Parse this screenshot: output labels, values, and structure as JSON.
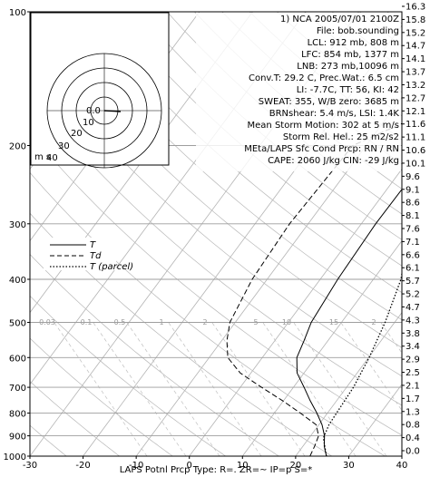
{
  "chart_data": {
    "type": "skew-t",
    "x_label": "",
    "x_ticks": [
      -30,
      -20,
      -10,
      0,
      10,
      20,
      30,
      40
    ],
    "y_ticks_pressure": [
      100,
      200,
      300,
      400,
      500,
      600,
      700,
      800,
      900,
      1000
    ],
    "y_ticks_height_km": [
      "16.3",
      "15.8",
      "15.2",
      "14.7",
      "14.1",
      "13.7",
      "13.2",
      "12.7",
      "12.1",
      "11.6",
      "11.1",
      "10.6",
      "10.1",
      "9.6",
      "9.1",
      "8.6",
      "8.1",
      "7.6",
      "7.1",
      "6.6",
      "6.1",
      "5.7",
      "5.2",
      "4.7",
      "4.3",
      "3.8",
      "3.4",
      "2.9",
      "2.5",
      "2.1",
      "1.7",
      "1.3",
      "0.8",
      "0.4",
      "0.0"
    ],
    "mixing_ratio_labels": [
      "0.03",
      "0.1",
      "0.5",
      "1",
      "2",
      "5",
      "10",
      "15",
      "2"
    ],
    "xlim": [
      -30,
      40
    ],
    "ylim_pressure": [
      1000,
      100
    ],
    "series": [
      {
        "name": "T",
        "style": "solid",
        "points": [
          [
            25.8,
            1000
          ],
          [
            24,
            950
          ],
          [
            22.6,
            900
          ],
          [
            20.6,
            850
          ],
          [
            18,
            800
          ],
          [
            15,
            750
          ],
          [
            12,
            700
          ],
          [
            8.7,
            650
          ],
          [
            6.5,
            600
          ],
          [
            5.5,
            550
          ],
          [
            4.3,
            500
          ],
          [
            3.3,
            400
          ],
          [
            2.7,
            300
          ],
          [
            3,
            200
          ],
          [
            20,
            150
          ],
          [
            29.8,
            100
          ]
        ]
      },
      {
        "name": "Td",
        "style": "dashed",
        "points": [
          [
            22.7,
            1000
          ],
          [
            22.2,
            950
          ],
          [
            21.5,
            900
          ],
          [
            19.5,
            850
          ],
          [
            14.9,
            800
          ],
          [
            9.8,
            750
          ],
          [
            4,
            700
          ],
          [
            -2,
            650
          ],
          [
            -6.5,
            600
          ],
          [
            -9,
            550
          ],
          [
            -11,
            500
          ],
          [
            -12.8,
            400
          ],
          [
            -13.5,
            300
          ],
          [
            -12.5,
            200
          ],
          [
            3,
            150
          ],
          [
            23.8,
            100
          ]
        ]
      },
      {
        "name": "T (parcel)",
        "style": "dotted",
        "points": [
          [
            25.8,
            1000
          ],
          [
            22.7,
            910
          ],
          [
            21.9,
            850
          ],
          [
            21.7,
            800
          ],
          [
            21.3,
            700
          ],
          [
            20.1,
            600
          ],
          [
            18.2,
            500
          ],
          [
            15.2,
            400
          ],
          [
            9.2,
            300
          ],
          [
            -1.6,
            200
          ],
          [
            -11,
            100
          ]
        ]
      }
    ],
    "legend": [
      "T",
      "Td",
      "T (parcel)"
    ],
    "hodograph": {
      "rings": [
        "10",
        "20",
        "30",
        "40"
      ],
      "center_label": "0.0",
      "units": "m s"
    },
    "info": {
      "title": "1)  NCA  2005/07/01  2100Z",
      "file": "File: bob.sounding",
      "lcl": "LCL:  912 mb,   808  m",
      "lfc": "LFC:  854 mb,  1377  m",
      "lnb": "LNB:  273 mb,10096  m",
      "conv": "Conv.T: 29.2 C,  Prec.Wat.:  6.5  cm",
      "li": "LI:   -7.7C,  TT:  56,  KI:  42",
      "sweat": "SWEAT:   355,  W/B zero:  3685  m",
      "brn": "BRNshear:   5.4 m/s,  LSI:    1.4K",
      "storm": "Mean Storm Motion:  302  at   5  m/s",
      "helicity": "Storm Rel. Hel.:  25  m2/s2",
      "precip": "MEta/LAPS Sfc Cond Prcp:  RN  /  RN",
      "cape": "CAPE:  2060  J/kg     CIN:  -29  J/kg"
    },
    "footer": "LAPS Potnl Prcp Type:  R=.    ZR=~    IP=p    S=*"
  }
}
